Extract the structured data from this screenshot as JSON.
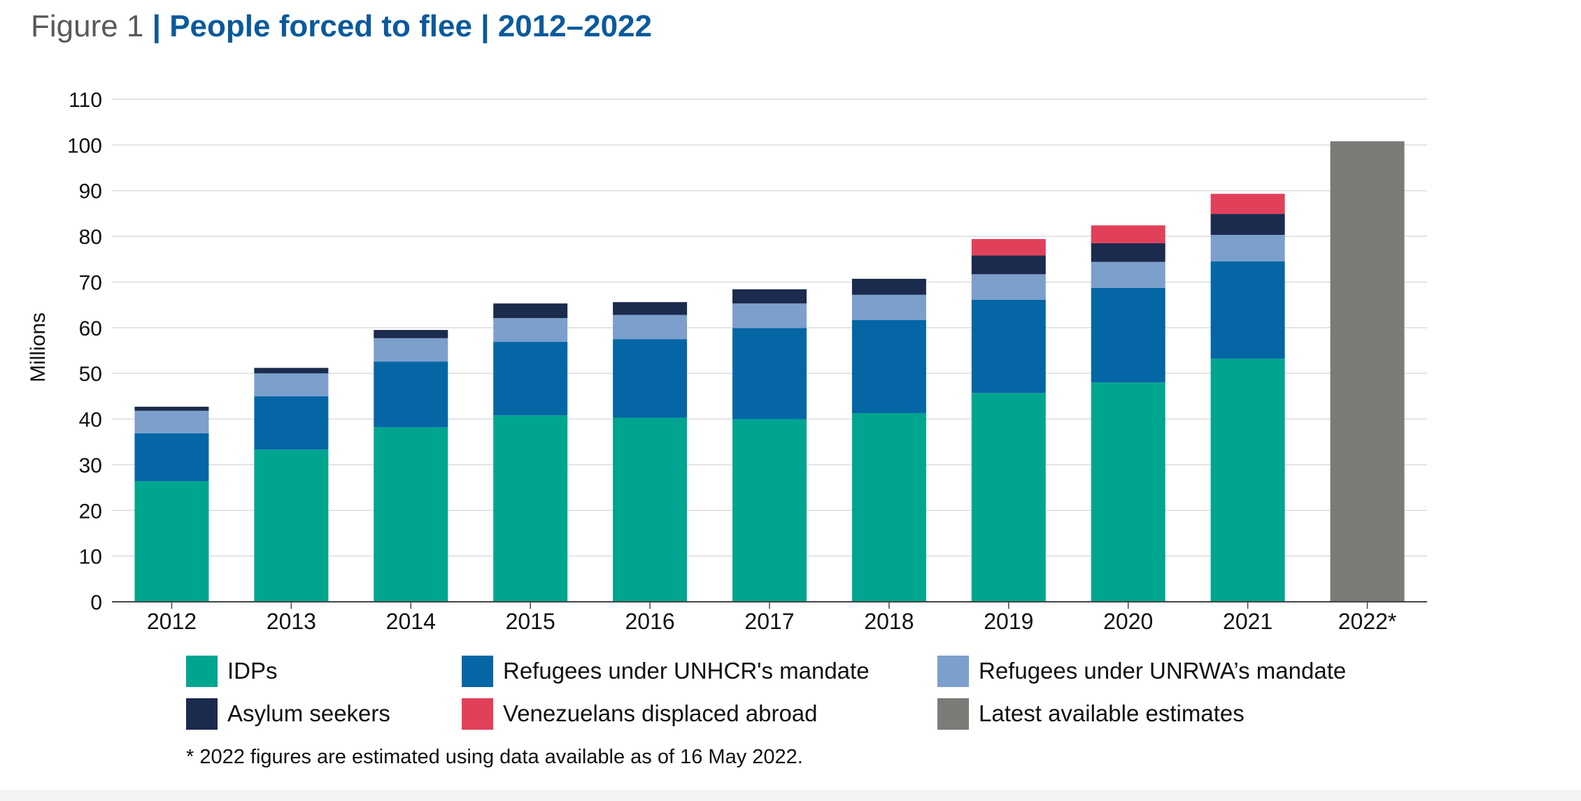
{
  "title": {
    "prefix": "Figure 1",
    "separator": "|",
    "main": "People forced to flee",
    "separator2": "|",
    "years": "2012–2022"
  },
  "chart_data": {
    "type": "bar",
    "stacked": true,
    "ylabel": "Millions",
    "xlabel": "",
    "ylim": [
      0,
      110
    ],
    "yticks": [
      0,
      10,
      20,
      30,
      40,
      50,
      60,
      70,
      80,
      90,
      100,
      110
    ],
    "grid": true,
    "legend_position": "bottom",
    "categories": [
      "2012",
      "2013",
      "2014",
      "2015",
      "2016",
      "2017",
      "2018",
      "2019",
      "2020",
      "2021",
      "2022*"
    ],
    "series": [
      {
        "name": "IDPs",
        "color": "#00a58f",
        "values": [
          26.4,
          33.3,
          38.2,
          40.8,
          40.3,
          40.0,
          41.3,
          45.7,
          48.0,
          53.2,
          null
        ]
      },
      {
        "name": "Refugees under UNHCR's mandate",
        "color": "#0566a5",
        "values": [
          10.5,
          11.7,
          14.4,
          16.1,
          17.2,
          19.9,
          20.4,
          20.4,
          20.7,
          21.3,
          null
        ]
      },
      {
        "name": "Refugees under UNRWA’s mandate",
        "color": "#7c9fcc",
        "values": [
          4.9,
          5.0,
          5.1,
          5.2,
          5.3,
          5.4,
          5.5,
          5.6,
          5.7,
          5.8,
          null
        ]
      },
      {
        "name": "Asylum seekers",
        "color": "#1b2b4e",
        "values": [
          0.9,
          1.2,
          1.8,
          3.2,
          2.8,
          3.1,
          3.5,
          4.1,
          4.1,
          4.6,
          null
        ]
      },
      {
        "name": "Venezuelans displaced abroad",
        "color": "#e1405a",
        "values": [
          null,
          null,
          null,
          null,
          null,
          null,
          null,
          3.6,
          3.9,
          4.4,
          null
        ]
      },
      {
        "name": "Latest available estimates",
        "color": "#7b7c78",
        "values": [
          null,
          null,
          null,
          null,
          null,
          null,
          null,
          null,
          null,
          null,
          100.8
        ]
      }
    ]
  },
  "footnote": "* 2022 figures are estimated using data available as of 16 May 2022."
}
